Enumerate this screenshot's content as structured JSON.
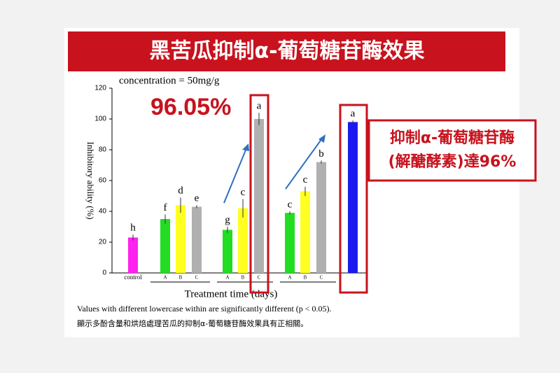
{
  "chart_data": {
    "type": "bar",
    "title": "黑苦瓜抑制α-葡萄糖苷酶效果",
    "subtitle": "concentration = 50mg/g",
    "highlight": "96.05%",
    "callout": [
      "抑制α-葡萄糖苷酶",
      "(解醣酵素)達96%"
    ],
    "y_label": "Inhibitory ability (%)",
    "x_label": "Treatment time (days)",
    "notes": [
      "Values with different lowercase within are significantly different (p < 0.05).",
      "顯示多酚含量和烘焙處理苦瓜的抑制α-葡萄糖苷酶效果具有正相關。"
    ],
    "categories": [
      "control",
      "A",
      "B",
      "C",
      "A",
      "B",
      "C",
      "A",
      "B",
      "C",
      null
    ],
    "values": [
      23,
      35,
      44,
      43,
      28,
      42,
      100,
      39,
      53,
      72,
      98
    ],
    "errors": [
      2,
      3,
      5,
      1,
      2,
      6,
      4,
      1,
      3,
      1,
      1
    ],
    "colors": [
      "#ff22ee",
      "#22dd22",
      "#ffff22",
      "#b0b0b0",
      "#22dd22",
      "#ffff22",
      "#b0b0b0",
      "#22dd22",
      "#ffff22",
      "#b0b0b0",
      "#1a1aee"
    ],
    "significance_letters": [
      "h",
      "f",
      "d",
      "e",
      "g",
      "c",
      "a",
      "c",
      "c",
      "b",
      "a"
    ],
    "ylim": [
      0,
      120
    ],
    "yticks": [
      0,
      20,
      40,
      60,
      80,
      100,
      120
    ]
  }
}
